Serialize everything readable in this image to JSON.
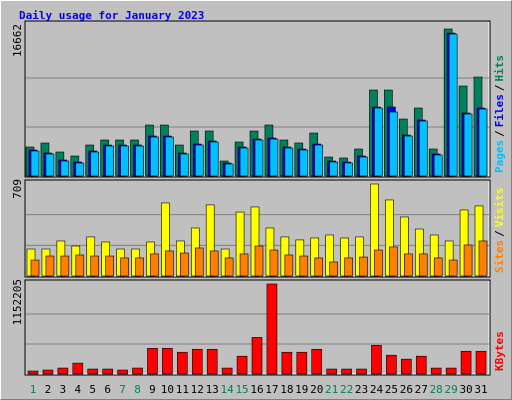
{
  "chart_data": [
    {
      "type": "bar",
      "title": "Daily usage for January 2023",
      "legend_separator": "/",
      "ylim": [
        0,
        16662
      ],
      "yticks": [
        16662
      ],
      "grid_divisions": 3,
      "series": [
        {
          "name": "Hits",
          "color": "#00805c",
          "values": [
            3286,
            3739,
            2719,
            2266,
            3512,
            4079,
            4079,
            4079,
            5778,
            5778,
            3512,
            5099,
            5099,
            1700,
            3852,
            5099,
            5778,
            4079,
            3739,
            4872,
            2153,
            2039,
            3059,
            9744,
            9744,
            6458,
            7704,
            3059,
            16662,
            10197,
            11217
          ]
        },
        {
          "name": "Files",
          "color": "#0000ff",
          "values": [
            2946,
            2606,
            1813,
            1586,
            2833,
            3512,
            3512,
            3512,
            4532,
            4532,
            2606,
            3625,
            3965,
            1473,
            3286,
            4192,
            4305,
            3286,
            3059,
            3625,
            1700,
            1586,
            2266,
            7817,
            7817,
            4645,
            6345,
            2493,
            16202,
            7138,
            7704
          ]
        },
        {
          "name": "Pages",
          "color": "#00c0ff",
          "values": [
            2833,
            2493,
            1700,
            1473,
            2719,
            3399,
            3399,
            3399,
            4419,
            4419,
            2493,
            3512,
            3852,
            1360,
            3172,
            4079,
            4192,
            3172,
            2946,
            3512,
            1586,
            1473,
            2153,
            7704,
            7251,
            4532,
            6232,
            2379,
            16089,
            7025,
            7591
          ]
        }
      ]
    },
    {
      "type": "bar",
      "ylim": [
        0,
        709
      ],
      "yticks": [
        709
      ],
      "grid_divisions": 3,
      "legend_separator": "/",
      "series": [
        {
          "name": "Visits",
          "color": "#ffff00",
          "values": [
            208,
            208,
            270,
            231,
            301,
            262,
            208,
            208,
            262,
            563,
            270,
            370,
            548,
            208,
            493,
            532,
            370,
            301,
            278,
            293,
            316,
            293,
            301,
            709,
            586,
            455,
            362,
            316,
            270,
            509,
            540
          ]
        },
        {
          "name": "Sites",
          "color": "#ff8000",
          "values": [
            123,
            154,
            154,
            162,
            154,
            154,
            139,
            139,
            170,
            193,
            177,
            216,
            193,
            139,
            170,
            231,
            200,
            162,
            154,
            139,
            108,
            139,
            146,
            200,
            224,
            170,
            170,
            139,
            123,
            239,
            270
          ]
        }
      ]
    },
    {
      "type": "bar",
      "ylim": [
        0,
        1152205
      ],
      "yticks": [
        1152205
      ],
      "grid_divisions": 3,
      "categories": [
        "1",
        "2",
        "3",
        "4",
        "5",
        "6",
        "7",
        "8",
        "9",
        "10",
        "11",
        "12",
        "13",
        "14",
        "15",
        "16",
        "17",
        "18",
        "19",
        "20",
        "21",
        "22",
        "23",
        "24",
        "25",
        "26",
        "27",
        "28",
        "29",
        "30",
        "31"
      ],
      "category_colors": [
        "#00805c",
        "#000000",
        "#000000",
        "#000000",
        "#000000",
        "#000000",
        "#00805c",
        "#00805c",
        "#000000",
        "#000000",
        "#000000",
        "#000000",
        "#000000",
        "#00805c",
        "#00805c",
        "#000000",
        "#000000",
        "#000000",
        "#000000",
        "#000000",
        "#00805c",
        "#00805c",
        "#000000",
        "#000000",
        "#000000",
        "#000000",
        "#000000",
        "#00805c",
        "#00805c",
        "#000000",
        "#000000"
      ],
      "series": [
        {
          "name": "KBytes",
          "color": "#ff0000",
          "values": [
            37987,
            50648,
            75972,
            139282,
            63310,
            63310,
            50648,
            75972,
            329212,
            329212,
            278564,
            316550,
            316550,
            75972,
            227916,
            468494,
            1152205,
            278564,
            278564,
            316550,
            63310,
            63310,
            63310,
            367198,
            240578,
            189930,
            227916,
            75972,
            75972,
            291226,
            291226
          ]
        }
      ]
    }
  ]
}
